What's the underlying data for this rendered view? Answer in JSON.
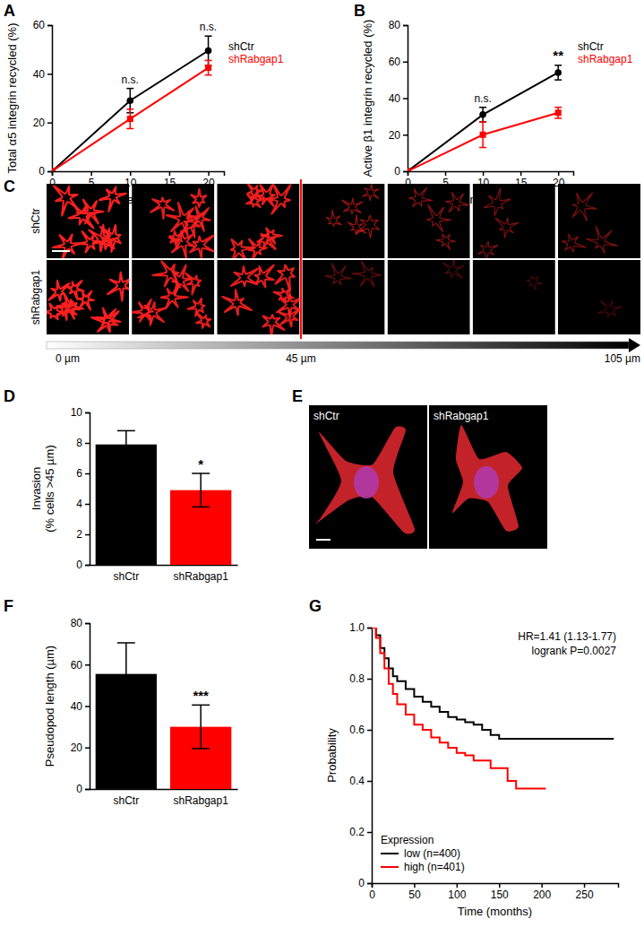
{
  "chart_data": [
    {
      "panel": "A",
      "type": "line",
      "x_label": "Time in min",
      "y_label": "Total α5 integrin recycled (%)",
      "x": [
        0,
        10,
        20
      ],
      "series": [
        {
          "name": "shCtr",
          "color": "#000000",
          "marker": "circle",
          "values": [
            0,
            29,
            49.5
          ],
          "errors": [
            null,
            5,
            6
          ]
        },
        {
          "name": "shRabgap1",
          "color": "#ff0000",
          "marker": "square",
          "values": [
            0,
            21.5,
            42.5
          ],
          "errors": [
            null,
            4,
            3
          ]
        }
      ],
      "xlim": [
        0,
        22
      ],
      "ylim": [
        0,
        60
      ],
      "xticks": [
        0,
        5,
        10,
        15,
        20
      ],
      "yticks": [
        0,
        20,
        40,
        60
      ],
      "legend": "right",
      "annotations": [
        {
          "x": 10,
          "text": "n.s."
        },
        {
          "x": 20,
          "text": "n.s."
        }
      ]
    },
    {
      "panel": "B",
      "type": "line",
      "x_label": "Time in min",
      "y_label": "Active β1 integrin recycled (%)",
      "x": [
        0,
        10,
        20
      ],
      "series": [
        {
          "name": "shCtr",
          "color": "#000000",
          "marker": "circle",
          "values": [
            0,
            31,
            54
          ],
          "errors": [
            null,
            4,
            4
          ]
        },
        {
          "name": "shRabgap1",
          "color": "#ff0000",
          "marker": "square",
          "values": [
            0,
            20,
            32
          ],
          "errors": [
            null,
            7,
            3
          ]
        }
      ],
      "xlim": [
        0,
        22
      ],
      "ylim": [
        0,
        80
      ],
      "xticks": [
        0,
        5,
        10,
        15,
        20
      ],
      "yticks": [
        0,
        20,
        40,
        60,
        80
      ],
      "legend": "right",
      "annotations": [
        {
          "x": 10,
          "text": "n.s."
        },
        {
          "x": 20,
          "text": "**"
        }
      ]
    },
    {
      "panel": "D",
      "type": "bar",
      "y_label": [
        "Invasion",
        "(% cells >45 µm)"
      ],
      "categories": [
        "shCtr",
        "shRabgap1"
      ],
      "values": [
        7.9,
        4.9
      ],
      "errors": [
        0.9,
        1.1
      ],
      "colors": [
        "#000000",
        "#ff0000"
      ],
      "ylim": [
        0,
        10
      ],
      "yticks": [
        0,
        2,
        4,
        6,
        8,
        10
      ],
      "annotations": [
        {
          "category": "shRabgap1",
          "text": "*"
        }
      ]
    },
    {
      "panel": "F",
      "type": "bar",
      "y_label": [
        "Pseudopod length (µm)"
      ],
      "categories": [
        "shCtr",
        "shRabgap1"
      ],
      "values": [
        55.5,
        30
      ],
      "errors": [
        15,
        10.5
      ],
      "colors": [
        "#000000",
        "#ff0000"
      ],
      "ylim": [
        0,
        80
      ],
      "yticks": [
        0,
        20,
        40,
        60,
        80
      ],
      "annotations": [
        {
          "category": "shRabgap1",
          "text": "***"
        }
      ]
    },
    {
      "panel": "G",
      "type": "line",
      "line_style": "step",
      "x_label": "Time (months)",
      "y_label": "Probability",
      "series": [
        {
          "name": "low (n=400)",
          "color": "#000000",
          "x": [
            0,
            5,
            10,
            15,
            20,
            25,
            30,
            40,
            50,
            60,
            70,
            80,
            90,
            100,
            110,
            120,
            130,
            140,
            150,
            285
          ],
          "values": [
            1,
            0.97,
            0.92,
            0.88,
            0.84,
            0.81,
            0.79,
            0.76,
            0.73,
            0.71,
            0.69,
            0.67,
            0.65,
            0.64,
            0.63,
            0.62,
            0.6,
            0.58,
            0.565,
            0.565
          ]
        },
        {
          "name": "high (n=401)",
          "color": "#ff0000",
          "x": [
            0,
            5,
            10,
            15,
            20,
            25,
            30,
            40,
            50,
            60,
            70,
            80,
            90,
            100,
            110,
            120,
            140,
            160,
            170,
            205
          ],
          "values": [
            1,
            0.96,
            0.9,
            0.84,
            0.78,
            0.74,
            0.7,
            0.66,
            0.62,
            0.6,
            0.57,
            0.55,
            0.53,
            0.51,
            0.5,
            0.48,
            0.45,
            0.4,
            0.37,
            0.37
          ]
        }
      ],
      "xlim": [
        0,
        290
      ],
      "ylim": [
        0,
        1
      ],
      "xticks": [
        0,
        50,
        100,
        150,
        200,
        250
      ],
      "yticks": [
        0,
        0.2,
        0.4,
        0.6,
        0.8,
        {
          "value": 1,
          "label": "1.0"
        }
      ],
      "legend": "lower left",
      "legend_title": "Expression",
      "annotations": [
        "HR=1.41 (1.13-1.77)",
        "logrank P=0.0027"
      ]
    }
  ],
  "images": [
    {
      "panel": "C",
      "rows": [
        "shCtr",
        "shRabgap1"
      ],
      "scale_labels": [
        "0 µm",
        "45 µm",
        "105 µm"
      ]
    },
    {
      "panel": "E",
      "columns": [
        "shCtr",
        "shRabgap1"
      ]
    }
  ]
}
